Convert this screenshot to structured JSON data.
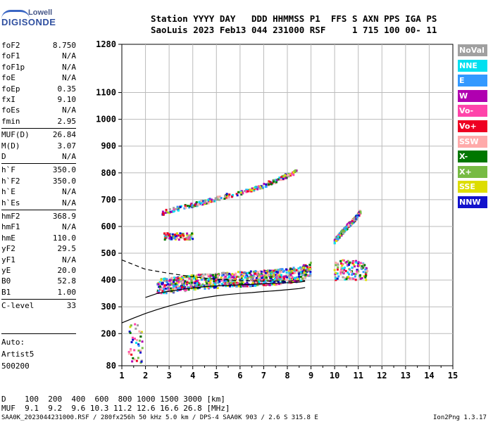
{
  "logo": {
    "top": "Lowell",
    "bottom": "DIGISONDE"
  },
  "header": {
    "line1": "Station YYYY DAY   DDD HHMMSS P1  FFS S AXN PPS IGA PS",
    "line2": "SaoLuis 2023 Feb13 044 231000 RSF     1 715 100 00- 11"
  },
  "params": [
    {
      "name": "foF2",
      "value": "8.750"
    },
    {
      "name": "foF1",
      "value": "N/A"
    },
    {
      "name": "foF1p",
      "value": "N/A"
    },
    {
      "name": "foE",
      "value": "N/A"
    },
    {
      "name": "foEp",
      "value": "0.35"
    },
    {
      "name": "fxI",
      "value": "9.10"
    },
    {
      "name": "foEs",
      "value": "N/A"
    },
    {
      "name": "fmin",
      "value": "2.95"
    },
    {
      "name": "MUF(D)",
      "value": "26.84"
    },
    {
      "name": "M(D)",
      "value": "3.07"
    },
    {
      "name": "D",
      "value": "N/A"
    },
    {
      "name": "h`F",
      "value": "350.0"
    },
    {
      "name": "h`F2",
      "value": "350.0"
    },
    {
      "name": "h`E",
      "value": "N/A"
    },
    {
      "name": "h`Es",
      "value": "N/A"
    },
    {
      "name": "hmF2",
      "value": "368.9"
    },
    {
      "name": "hmF1",
      "value": "N/A"
    },
    {
      "name": "hmE",
      "value": "110.0"
    },
    {
      "name": "yF2",
      "value": "29.5"
    },
    {
      "name": "yF1",
      "value": "N/A"
    },
    {
      "name": "yE",
      "value": "20.0"
    },
    {
      "name": "B0",
      "value": "52.8"
    },
    {
      "name": "B1",
      "value": "1.00"
    },
    {
      "name": "C-level",
      "value": "33"
    }
  ],
  "scaling": {
    "line1": "Auto:",
    "line2": "Artist5",
    "line3": "500200"
  },
  "legend": [
    {
      "label": "NoVal",
      "color": "#a0a0a0"
    },
    {
      "label": "NNE",
      "color": "#00e0f0"
    },
    {
      "label": "E",
      "color": "#3399ff"
    },
    {
      "label": "W",
      "color": "#b000b0"
    },
    {
      "label": "Vo-",
      "color": "#ff44aa"
    },
    {
      "label": "Vo+",
      "color": "#ee0022"
    },
    {
      "label": "SSW",
      "color": "#ffaaaa"
    },
    {
      "label": "X-",
      "color": "#007700"
    },
    {
      "label": "X+",
      "color": "#77bb44"
    },
    {
      "label": "SSE",
      "color": "#dddd00"
    },
    {
      "label": "NNW",
      "color": "#1111cc"
    }
  ],
  "chart_data": {
    "type": "scatter",
    "x_ticks": [
      "1",
      "2",
      "3",
      "4",
      "5",
      "6",
      "7",
      "8",
      "9",
      "10",
      "11",
      "12",
      "13",
      "14",
      "15"
    ],
    "y_ticks": [
      "80",
      "200",
      "300",
      "400",
      "500",
      "600",
      "700",
      "800",
      "900",
      "1000",
      "1100",
      "1280"
    ],
    "xlim": [
      1,
      15
    ],
    "ylim": [
      80,
      1280
    ],
    "grid": true,
    "traces": [
      {
        "name": "ordinary trace",
        "x": [
          2.7,
          3.5,
          4.5,
          5.5,
          6.5,
          7.5,
          8.0,
          8.4
        ],
        "y": [
          650,
          670,
          690,
          715,
          735,
          770,
          790,
          805
        ]
      },
      {
        "name": "extraordinary trace",
        "x": [
          10.0,
          10.3,
          10.6,
          10.9,
          11.1
        ],
        "y": [
          545,
          575,
          605,
          630,
          655
        ]
      },
      {
        "name": "F layer echoes",
        "x": [
          2.5,
          3.5,
          4.5,
          5.5,
          6.5,
          7.5,
          8.5,
          9.0
        ],
        "y": [
          375,
          385,
          395,
          400,
          405,
          410,
          420,
          440
        ]
      }
    ],
    "profile_lines": [
      {
        "x": [
          1.0,
          1.5,
          2.0,
          2.5,
          3.0,
          3.5,
          4.0,
          4.5,
          5.0,
          5.5,
          6.0,
          6.5,
          7.0,
          7.5,
          8.0,
          8.5,
          8.75
        ],
        "y": [
          240,
          258,
          275,
          290,
          303,
          315,
          326,
          334,
          341,
          346,
          350,
          353,
          357,
          360,
          364,
          368,
          372
        ]
      },
      {
        "x": [
          2.0,
          2.5,
          3.0,
          3.5,
          4.0,
          4.5,
          5.0,
          5.5,
          6.0,
          6.5,
          7.0,
          7.5,
          8.0,
          8.5,
          8.75
        ],
        "y": [
          335,
          350,
          358,
          365,
          370,
          375,
          378,
          380,
          382,
          384,
          386,
          388,
          390,
          392,
          395
        ]
      },
      {
        "x": [
          1.0,
          2.0,
          3.0,
          4.0,
          5.0,
          6.0,
          7.0,
          8.0,
          8.75
        ],
        "y": [
          475,
          440,
          425,
          412,
          403,
          398,
          396,
          396,
          398
        ],
        "dashed": true
      }
    ]
  },
  "footer": {
    "d_row": "D    100  200  400  600  800 1000 1500 3000 [km]",
    "muf_row": "MUF  9.1  9.2  9.6 10.3 11.2 12.6 16.6 26.8 [MHz]",
    "file_info": "SAA0K_2023044231000.RSF / 280fx256h 50 kHz 5.0 km / DPS-4 SAA0K 903 / 2.6 S 315.8 E",
    "version": "Ion2Png 1.3.17"
  }
}
